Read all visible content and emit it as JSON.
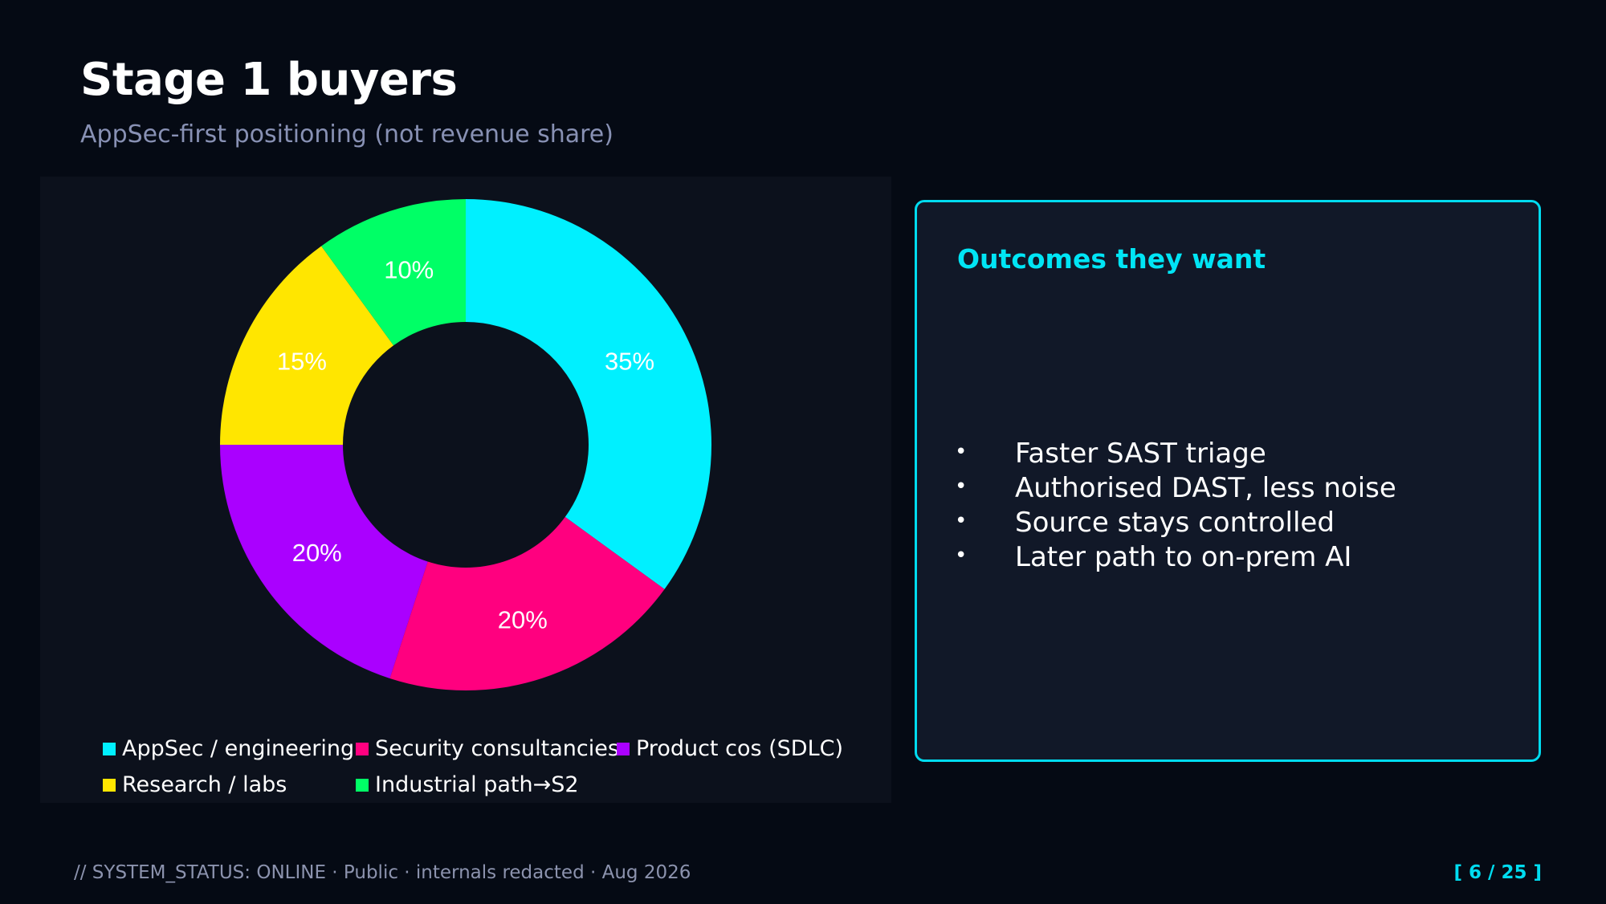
{
  "slide": {
    "title": "Stage 1 buyers",
    "subtitle": "AppSec-first positioning (not revenue share)"
  },
  "chart_data": {
    "type": "pie",
    "variant": "donut",
    "categories": [
      "AppSec / engineering",
      "Security consultancies",
      "Product cos (SDLC)",
      "Research / labs",
      "Industrial path→S2"
    ],
    "values": [
      35,
      20,
      20,
      15,
      10
    ],
    "labels": [
      "35%",
      "20%",
      "20%",
      "15%",
      "10%"
    ],
    "unit": "%",
    "colors": [
      "#00f0ff",
      "#ff007f",
      "#aa00ff",
      "#ffe600",
      "#00ff66"
    ],
    "start_angle": "top",
    "direction": "clockwise",
    "legend_position": "bottom"
  },
  "outcomes": {
    "title": "Outcomes they want",
    "bullet_symbol": "•",
    "items": [
      "Faster SAST triage",
      "Authorised DAST, less noise",
      "Source stays controlled",
      "Later path to on-prem AI"
    ]
  },
  "footer": {
    "left": "// SYSTEM_STATUS: ONLINE  ·  Public · internals redacted · Aug 2026",
    "page": "[ 6 / 25 ]"
  },
  "colors": {
    "background": "#050a14",
    "panel": "#0c111c",
    "accent": "#00dcf0",
    "subtitle": "#8891b4"
  }
}
